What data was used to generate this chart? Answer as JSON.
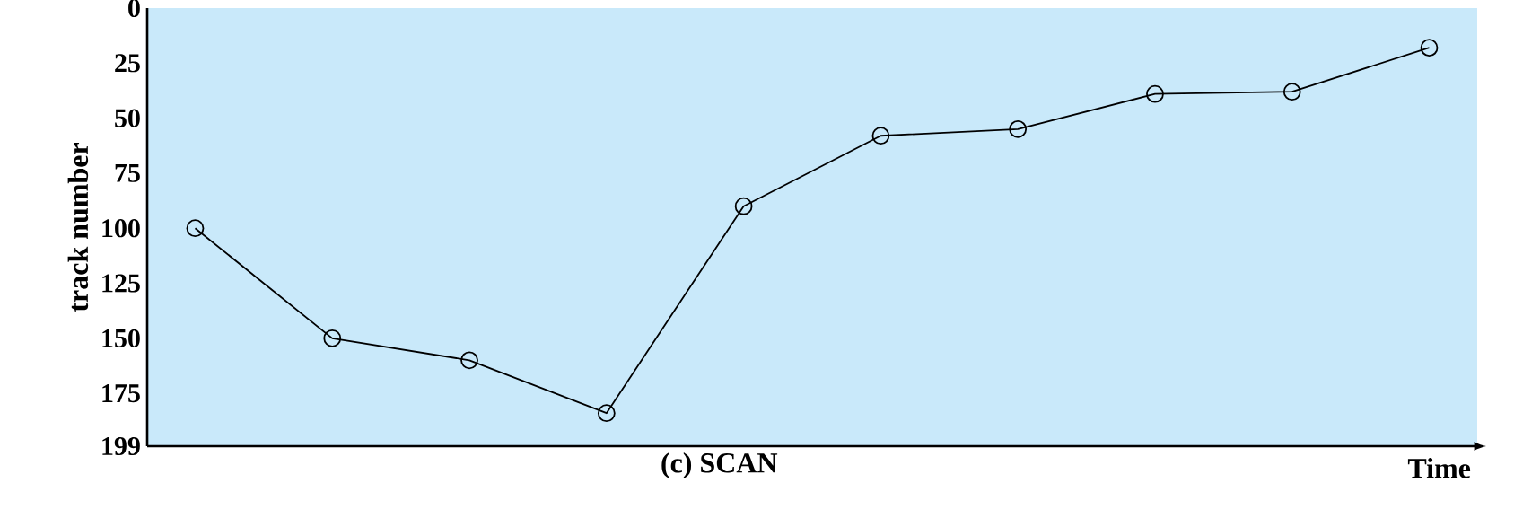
{
  "chart_data": {
    "type": "line",
    "title": "(c) SCAN",
    "xlabel": "Time",
    "ylabel": "track number",
    "categories": [
      null,
      null,
      null,
      null,
      null,
      null,
      null,
      null,
      null,
      null
    ],
    "ylim": [
      199,
      0
    ],
    "yticks": [
      0,
      25,
      50,
      75,
      100,
      125,
      150,
      175,
      199
    ],
    "tick_labels": "y",
    "marker": "circle",
    "series": [
      {
        "color": "#000000",
        "values": [
          100,
          150,
          160,
          184,
          90,
          58,
          55,
          39,
          38,
          18
        ]
      }
    ]
  }
}
